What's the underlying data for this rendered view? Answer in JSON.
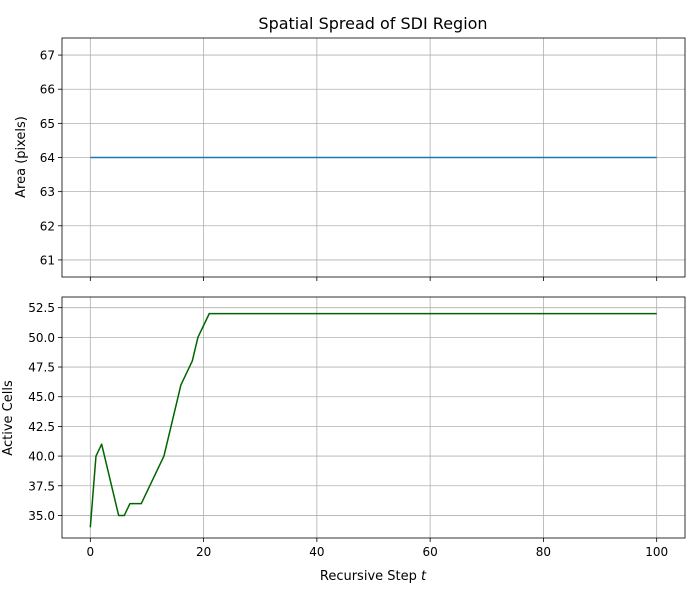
{
  "chart_data": [
    {
      "type": "line",
      "title": "Spatial Spread of SDI Region",
      "xlabel": "",
      "ylabel": "Area (pixels)",
      "xlim": [
        -5,
        105
      ],
      "ylim": [
        60.5,
        67.5
      ],
      "xticks": [
        0,
        20,
        40,
        60,
        80,
        100
      ],
      "yticks": [
        61,
        62,
        63,
        64,
        65,
        66,
        67
      ],
      "ytick_labels": [
        "61",
        "62",
        "63",
        "64",
        "65",
        "66",
        "67"
      ],
      "grid": true,
      "series": [
        {
          "color": "#1f77b4",
          "x": [
            0,
            100
          ],
          "y": [
            64,
            64
          ]
        }
      ]
    },
    {
      "type": "line",
      "title": "",
      "xlabel": "Recursive Step t",
      "ylabel": "Active Cells",
      "xlim": [
        -5,
        105
      ],
      "ylim": [
        33.1,
        53.4
      ],
      "xticks": [
        0,
        20,
        40,
        60,
        80,
        100
      ],
      "xtick_labels": [
        "0",
        "20",
        "40",
        "60",
        "80",
        "100"
      ],
      "yticks": [
        35.0,
        37.5,
        40.0,
        42.5,
        45.0,
        47.5,
        50.0,
        52.5
      ],
      "ytick_labels": [
        "35.0",
        "37.5",
        "40.0",
        "42.5",
        "45.0",
        "47.5",
        "50.0",
        "52.5"
      ],
      "grid": true,
      "series": [
        {
          "color": "#006400",
          "x": [
            0,
            1,
            2,
            5,
            6,
            7,
            9,
            13,
            16,
            18,
            19,
            21,
            100
          ],
          "y": [
            34,
            40,
            41,
            35,
            35,
            36,
            36,
            40,
            46,
            48,
            50,
            52,
            52
          ]
        }
      ]
    }
  ]
}
